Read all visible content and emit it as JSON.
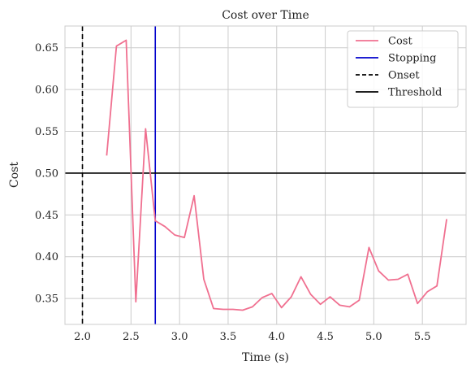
{
  "chart_data": {
    "type": "line",
    "title": "Cost over Time",
    "xlabel": "Time (s)",
    "ylabel": "Cost",
    "xlim": [
      1.82,
      5.95
    ],
    "ylim": [
      0.319,
      0.676
    ],
    "xticks": [
      "2.0",
      "2.5",
      "3.0",
      "3.5",
      "4.0",
      "4.5",
      "5.0",
      "5.5"
    ],
    "xtick_values": [
      2.0,
      2.5,
      3.0,
      3.5,
      4.0,
      4.5,
      5.0,
      5.5
    ],
    "yticks": [
      "0.35",
      "0.40",
      "0.45",
      "0.50",
      "0.55",
      "0.60",
      "0.65"
    ],
    "ytick_values": [
      0.35,
      0.4,
      0.45,
      0.5,
      0.55,
      0.6,
      0.65
    ],
    "grid": true,
    "legend_position": "top-right",
    "series": [
      {
        "name": "Cost",
        "color": "#f07090",
        "x": [
          2.25,
          2.35,
          2.45,
          2.55,
          2.65,
          2.75,
          2.85,
          2.95,
          3.05,
          3.15,
          3.25,
          3.35,
          3.45,
          3.55,
          3.65,
          3.75,
          3.85,
          3.95,
          4.05,
          4.15,
          4.25,
          4.35,
          4.45,
          4.55,
          4.65,
          4.75,
          4.85,
          4.95,
          5.05,
          5.15,
          5.25,
          5.35,
          5.45,
          5.55,
          5.65,
          5.75
        ],
        "y": [
          0.521,
          0.652,
          0.659,
          0.346,
          0.553,
          0.443,
          0.436,
          0.426,
          0.423,
          0.473,
          0.373,
          0.338,
          0.337,
          0.337,
          0.336,
          0.34,
          0.351,
          0.356,
          0.339,
          0.352,
          0.376,
          0.355,
          0.343,
          0.352,
          0.342,
          0.34,
          0.348,
          0.411,
          0.383,
          0.372,
          0.373,
          0.379,
          0.344,
          0.358,
          0.365,
          0.445
        ]
      }
    ],
    "reference_lines": [
      {
        "name": "Stopping",
        "orientation": "vertical",
        "value": 2.75,
        "color": "#0000cc",
        "style": "solid"
      },
      {
        "name": "Onset",
        "orientation": "vertical",
        "value": 2.0,
        "color": "#000000",
        "style": "dashed"
      },
      {
        "name": "Threshold",
        "orientation": "horizontal",
        "value": 0.5,
        "color": "#000000",
        "style": "solid"
      }
    ]
  }
}
